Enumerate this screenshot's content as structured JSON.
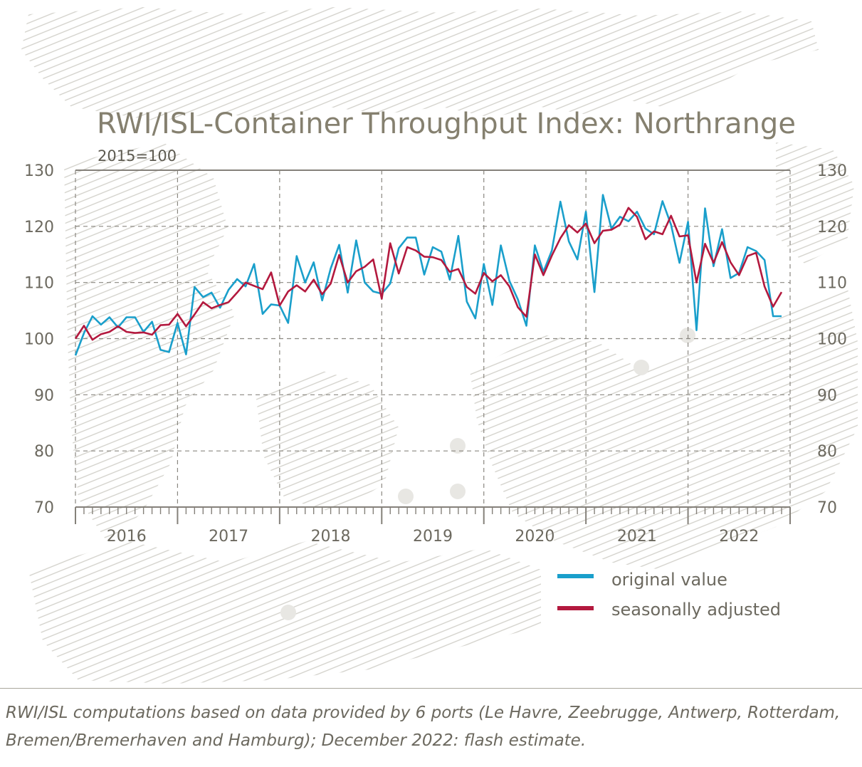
{
  "chart_data": {
    "type": "line",
    "title": "RWI/ISL-Container Throughput Index: Northrange",
    "subtitle": "2015=100",
    "ylim": [
      70,
      130
    ],
    "yticks": [
      70,
      80,
      90,
      100,
      110,
      120,
      130
    ],
    "x_start": "2016-01",
    "x_end": "2022-12",
    "years": [
      "2016",
      "2017",
      "2018",
      "2019",
      "2020",
      "2021",
      "2022"
    ],
    "grid": true,
    "legend_position": "bottom-right",
    "series": [
      {
        "name": "original value",
        "color": "#1a9fcb",
        "values": [
          97.0,
          101.0,
          104.0,
          102.5,
          103.8,
          102.0,
          103.8,
          103.8,
          101.2,
          103.0,
          98.0,
          97.6,
          102.8,
          97.2,
          109.2,
          107.4,
          108.2,
          105.5,
          108.7,
          110.6,
          109.3,
          113.3,
          104.4,
          106.1,
          105.9,
          102.8,
          114.7,
          110.0,
          113.6,
          106.8,
          112.5,
          116.7,
          108.2,
          117.5,
          110.0,
          108.4,
          108.0,
          109.8,
          116.1,
          118.0,
          118.0,
          111.4,
          116.3,
          115.5,
          110.5,
          118.3,
          106.6,
          103.6,
          113.3,
          106.0,
          116.6,
          110.3,
          107.0,
          102.3,
          116.6,
          111.9,
          115.7,
          124.4,
          117.3,
          114.1,
          122.6,
          108.3,
          125.6,
          119.6,
          121.7,
          120.9,
          122.6,
          119.6,
          118.6,
          124.5,
          120.3,
          113.5,
          120.8,
          101.5,
          123.2,
          112.9,
          119.5,
          110.8,
          111.7,
          116.3,
          115.6,
          114.0,
          104.0,
          104.0
        ]
      },
      {
        "name": "seasonally adjusted",
        "color": "#b3193e",
        "values": [
          100.0,
          102.3,
          99.8,
          100.8,
          101.2,
          102.2,
          101.2,
          101.0,
          101.1,
          100.7,
          102.4,
          102.5,
          104.4,
          102.2,
          104.3,
          106.5,
          105.4,
          106.0,
          106.5,
          108.2,
          110.0,
          109.4,
          108.8,
          111.8,
          105.9,
          108.4,
          109.5,
          108.4,
          110.5,
          107.9,
          109.8,
          114.9,
          110.0,
          112.0,
          112.8,
          114.1,
          107.1,
          117.0,
          111.6,
          116.3,
          115.7,
          114.6,
          114.5,
          114.0,
          111.9,
          112.4,
          109.2,
          108.0,
          111.7,
          110.2,
          111.3,
          109.3,
          105.6,
          103.9,
          115.0,
          111.3,
          114.8,
          117.9,
          120.2,
          118.9,
          120.5,
          117.0,
          119.2,
          119.4,
          120.3,
          123.3,
          121.7,
          117.7,
          119.1,
          118.6,
          121.9,
          118.2,
          118.4,
          110.0,
          116.9,
          113.5,
          117.2,
          113.6,
          111.3,
          114.7,
          115.3,
          109.3,
          105.7,
          108.3
        ]
      }
    ]
  },
  "footnote": "RWI/ISL computations based on data provided by 6 ports (Le Havre, Zeebrugge, Antwerp, Rotterdam, Bremen/Bremerhaven and Hamburg); December 2022: flash estimate."
}
